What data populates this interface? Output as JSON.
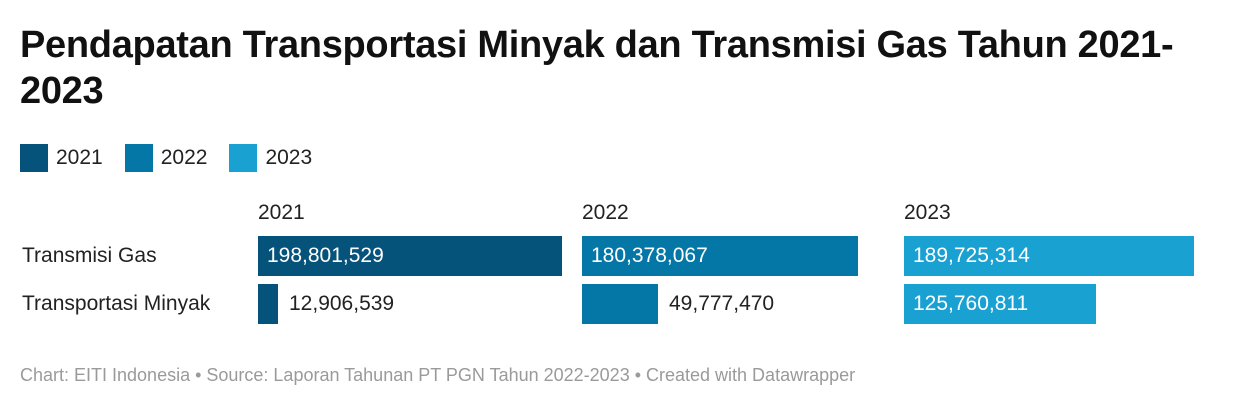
{
  "title": "Pendapatan Transportasi Minyak dan Transmisi Gas Tahun 2021-2023",
  "legend": [
    {
      "label": "2021",
      "color": "#05527a"
    },
    {
      "label": "2022",
      "color": "#0577a6"
    },
    {
      "label": "2023",
      "color": "#19a1d2"
    }
  ],
  "chart_data": {
    "type": "bar",
    "orientation": "horizontal",
    "layout": "small-multiples",
    "categories": [
      "Transmisi Gas",
      "Transportasi Minyak"
    ],
    "series": [
      {
        "name": "2021",
        "color": "#05527a",
        "values": [
          198801529,
          12906539
        ],
        "labels": [
          "198,801,529",
          "12,906,539"
        ]
      },
      {
        "name": "2022",
        "color": "#0577a6",
        "values": [
          180378067,
          49777470
        ],
        "labels": [
          "180,378,067",
          "49,777,470"
        ]
      },
      {
        "name": "2023",
        "color": "#19a1d2",
        "values": [
          189725314,
          125760811
        ],
        "labels": [
          "189,725,314",
          "125,760,811"
        ]
      }
    ],
    "xlim": [
      0,
      200000000
    ],
    "grid": false,
    "legend_position": "top-left"
  },
  "footer": "Chart: EITI Indonesia • Source: Laporan Tahunan PT PGN Tahun 2022-2023 • Created with Datawrapper"
}
